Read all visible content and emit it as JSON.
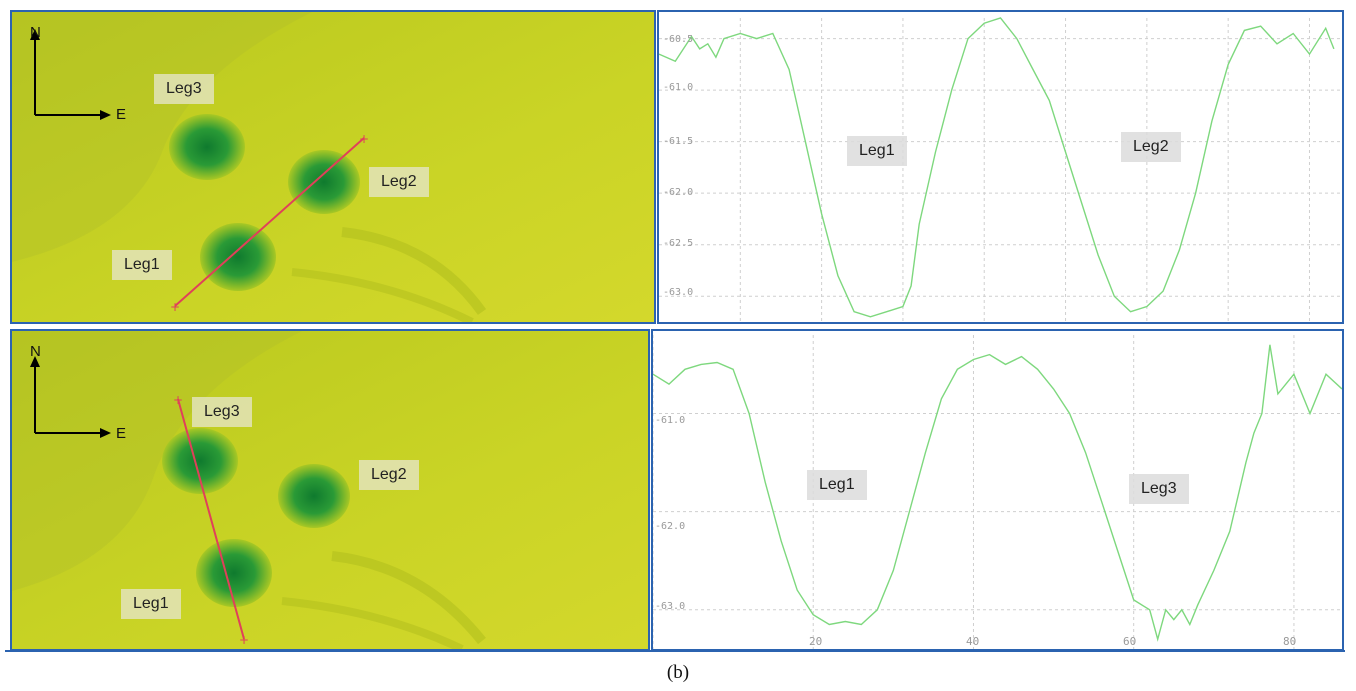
{
  "caption": "(b)",
  "colors": {
    "panel_border": "#2b63b0",
    "terrain": "#c8d21e",
    "profile_line": "#7ed87e",
    "section_line": "#e0405a"
  },
  "compass": {
    "north": "N",
    "east": "E"
  },
  "top": {
    "map_labels": {
      "leg1": "Leg1",
      "leg2": "Leg2",
      "leg3": "Leg3"
    },
    "profile_labels": {
      "left": "Leg1",
      "right": "Leg2"
    },
    "y_ticks": [
      "-60.5",
      "-61.0",
      "-61.5",
      "-62.0",
      "-62.5",
      "-63.0"
    ]
  },
  "bottom": {
    "map_labels": {
      "leg1": "Leg1",
      "leg2": "Leg2",
      "leg3": "Leg3"
    },
    "profile_labels": {
      "left": "Leg1",
      "right": "Leg3"
    },
    "y_ticks": [
      "-61.0",
      "-62.0",
      "-63.0"
    ],
    "x_ticks": [
      "20",
      "40",
      "60",
      "80"
    ]
  },
  "chart_data": [
    {
      "type": "line",
      "title": "",
      "xlabel": "",
      "ylabel": "",
      "ylim": [
        -63.25,
        -60.3
      ],
      "xlim": [
        0,
        84
      ],
      "grid": true,
      "y_ticks": [
        -60.5,
        -61.0,
        -61.5,
        -62.0,
        -62.5,
        -63.0
      ],
      "series": [
        {
          "x": [
            0,
            2,
            4,
            5,
            6,
            7,
            8,
            10,
            12,
            14,
            16,
            18,
            20,
            22,
            24,
            26,
            28,
            30,
            31,
            32,
            34,
            36,
            38,
            40,
            42,
            44,
            46,
            48,
            50,
            52,
            54,
            56,
            58,
            60,
            62,
            64,
            66,
            68,
            70,
            72,
            74,
            76,
            78,
            80,
            82,
            83
          ],
          "values": [
            -60.65,
            -60.72,
            -60.48,
            -60.6,
            -60.55,
            -60.68,
            -60.5,
            -60.45,
            -60.5,
            -60.45,
            -60.8,
            -61.5,
            -62.2,
            -62.8,
            -63.15,
            -63.2,
            -63.15,
            -63.1,
            -62.9,
            -62.3,
            -61.6,
            -61.0,
            -60.5,
            -60.35,
            -60.3,
            -60.5,
            -60.8,
            -61.1,
            -61.6,
            -62.1,
            -62.6,
            -63.0,
            -63.15,
            -63.1,
            -62.95,
            -62.55,
            -62.0,
            -61.3,
            -60.75,
            -60.42,
            -60.38,
            -60.55,
            -60.45,
            -60.65,
            -60.4,
            -60.6
          ]
        }
      ]
    },
    {
      "type": "line",
      "title": "",
      "xlabel": "",
      "ylabel": "",
      "ylim": [
        -63.4,
        -60.2
      ],
      "xlim": [
        0,
        86
      ],
      "grid": true,
      "y_ticks": [
        -61.0,
        -62.0,
        -63.0
      ],
      "x_ticks": [
        20,
        40,
        60,
        80
      ],
      "series": [
        {
          "x": [
            0,
            2,
            4,
            6,
            8,
            10,
            12,
            14,
            16,
            18,
            20,
            22,
            24,
            26,
            28,
            30,
            32,
            34,
            36,
            38,
            40,
            42,
            44,
            46,
            48,
            50,
            52,
            54,
            56,
            58,
            60,
            62,
            63,
            64,
            65,
            66,
            67,
            68,
            70,
            72,
            74,
            75,
            76,
            77,
            78,
            80,
            82,
            84,
            86
          ],
          "values": [
            -60.6,
            -60.7,
            -60.55,
            -60.5,
            -60.48,
            -60.55,
            -61.0,
            -61.7,
            -62.3,
            -62.8,
            -63.05,
            -63.15,
            -63.12,
            -63.15,
            -63.0,
            -62.6,
            -62.0,
            -61.4,
            -60.85,
            -60.55,
            -60.45,
            -60.4,
            -60.5,
            -60.42,
            -60.55,
            -60.75,
            -61.0,
            -61.4,
            -61.9,
            -62.4,
            -62.9,
            -63.0,
            -63.3,
            -63.0,
            -63.1,
            -63.0,
            -63.15,
            -62.95,
            -62.6,
            -62.2,
            -61.5,
            -61.2,
            -61.0,
            -60.3,
            -60.8,
            -60.6,
            -61.0,
            -60.6,
            -60.75
          ]
        }
      ]
    }
  ]
}
